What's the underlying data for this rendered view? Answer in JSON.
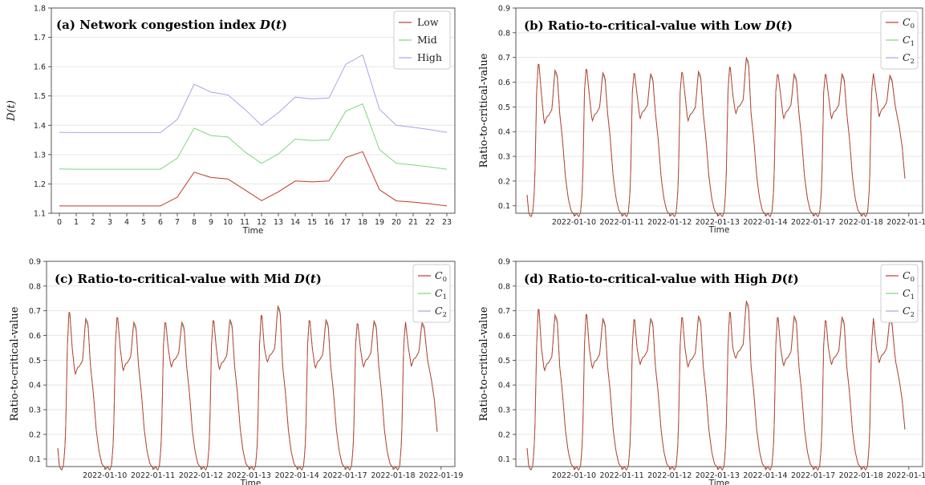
{
  "chart_data": [
    {
      "type": "line",
      "title": "(a) Network congestion index D(t)",
      "xlabel": "Time",
      "ylabel": "D(t)",
      "ylim": [
        1.1,
        1.8
      ],
      "yticks": [
        "1.1",
        "1.2",
        "1.3",
        "1.4",
        "1.5",
        "1.6",
        "1.7",
        "1.8"
      ],
      "categories": [
        "0",
        "1",
        "2",
        "3",
        "4",
        "5",
        "6",
        "7",
        "8",
        "9",
        "10",
        "11",
        "12",
        "13",
        "14",
        "15",
        "16",
        "17",
        "18",
        "19",
        "20",
        "21",
        "22",
        "23"
      ],
      "grid": "horizontal",
      "legend_position": "top-right",
      "series": [
        {
          "name": "Low",
          "color": "#c0392b",
          "values": [
            1.125,
            1.125,
            1.125,
            1.125,
            1.125,
            1.125,
            1.125,
            1.155,
            1.24,
            1.222,
            1.217,
            1.18,
            1.143,
            1.173,
            1.21,
            1.207,
            1.21,
            1.29,
            1.31,
            1.18,
            1.142,
            1.138,
            1.132,
            1.125
          ]
        },
        {
          "name": "Mid",
          "color": "#7fd67f",
          "values": [
            1.251,
            1.25,
            1.25,
            1.25,
            1.25,
            1.25,
            1.25,
            1.288,
            1.39,
            1.365,
            1.36,
            1.31,
            1.27,
            1.302,
            1.353,
            1.348,
            1.35,
            1.448,
            1.473,
            1.317,
            1.27,
            1.265,
            1.258,
            1.25
          ]
        },
        {
          "name": "High",
          "color": "#a9a3e8",
          "values": [
            1.376,
            1.375,
            1.375,
            1.375,
            1.375,
            1.375,
            1.375,
            1.42,
            1.54,
            1.513,
            1.504,
            1.455,
            1.4,
            1.443,
            1.496,
            1.49,
            1.493,
            1.608,
            1.64,
            1.455,
            1.4,
            1.393,
            1.385,
            1.376
          ]
        }
      ]
    },
    {
      "type": "line",
      "title": "(b) Ratio-to-critical-value with Low D(t)",
      "xlabel": "Time",
      "ylabel": "Ratio-to-critical-value",
      "ylim": [
        0.07,
        0.9
      ],
      "yticks": [
        "0.1",
        "0.2",
        "0.3",
        "0.4",
        "0.5",
        "0.6",
        "0.7",
        "0.8",
        "0.9"
      ],
      "xtick_labels": [
        "2022-01-10",
        "2022-01-11",
        "2022-01-12",
        "2022-01-13",
        "2022-01-14",
        "2022-01-17",
        "2022-01-18",
        "2022-01-19"
      ],
      "grid": "horizontal",
      "legend_position": "top-right",
      "series": [
        {
          "name": "C0",
          "color": "#c0392b",
          "day_peaks": [
            0.695,
            0.67,
            0.65,
            0.655,
            0.68,
            0.645,
            0.645,
            0.635
          ],
          "day_second_peaks": [
            0.65,
            0.64,
            0.635,
            0.645,
            0.7,
            0.635,
            0.635,
            0.63
          ],
          "day_dips": [
            0.43,
            0.44,
            0.45,
            0.44,
            0.47,
            0.45,
            0.45,
            0.46
          ],
          "end_value": 0.21
        },
        {
          "name": "C1",
          "color": "#7fd67f",
          "day_peaks": [
            0.695,
            0.67,
            0.65,
            0.655,
            0.68,
            0.645,
            0.645,
            0.635
          ],
          "day_second_peaks": [
            0.645,
            0.635,
            0.63,
            0.64,
            0.695,
            0.63,
            0.63,
            0.625
          ],
          "day_dips": [
            0.43,
            0.44,
            0.45,
            0.44,
            0.47,
            0.45,
            0.45,
            0.46
          ],
          "end_value": 0.21
        },
        {
          "name": "C2",
          "color": "#a9a3e8",
          "day_peaks": [
            0.695,
            0.67,
            0.65,
            0.655,
            0.68,
            0.645,
            0.645,
            0.635
          ],
          "day_second_peaks": [
            0.64,
            0.63,
            0.625,
            0.635,
            0.69,
            0.625,
            0.625,
            0.62
          ],
          "day_dips": [
            0.43,
            0.44,
            0.45,
            0.44,
            0.47,
            0.45,
            0.45,
            0.46
          ],
          "end_value": 0.21
        }
      ]
    },
    {
      "type": "line",
      "title": "(c) Ratio-to-critical-value with Mid D(t)",
      "xlabel": "Time",
      "ylabel": "Ratio-to-critical-value",
      "ylim": [
        0.07,
        0.9
      ],
      "yticks": [
        "0.1",
        "0.2",
        "0.3",
        "0.4",
        "0.5",
        "0.6",
        "0.7",
        "0.8",
        "0.9"
      ],
      "xtick_labels": [
        "2022-01-10",
        "2022-01-11",
        "2022-01-12",
        "2022-01-13",
        "2022-01-14",
        "2022-01-17",
        "2022-01-18",
        "2022-01-19"
      ],
      "grid": "horizontal",
      "legend_position": "top-right",
      "series": [
        {
          "name": "C0",
          "color": "#c0392b",
          "day_peaks": [
            0.72,
            0.695,
            0.67,
            0.68,
            0.705,
            0.68,
            0.665,
            0.655
          ],
          "day_second_peaks": [
            0.67,
            0.655,
            0.655,
            0.665,
            0.72,
            0.665,
            0.66,
            0.655
          ],
          "day_dips": [
            0.44,
            0.455,
            0.47,
            0.46,
            0.49,
            0.465,
            0.47,
            0.475
          ],
          "end_value": 0.21
        },
        {
          "name": "C1",
          "color": "#7fd67f",
          "day_peaks": [
            0.72,
            0.695,
            0.67,
            0.68,
            0.705,
            0.68,
            0.665,
            0.655
          ],
          "day_second_peaks": [
            0.665,
            0.65,
            0.65,
            0.66,
            0.715,
            0.66,
            0.655,
            0.65
          ],
          "day_dips": [
            0.44,
            0.455,
            0.47,
            0.46,
            0.49,
            0.465,
            0.47,
            0.475
          ],
          "end_value": 0.21
        },
        {
          "name": "C2",
          "color": "#a9a3e8",
          "day_peaks": [
            0.72,
            0.695,
            0.67,
            0.68,
            0.705,
            0.68,
            0.665,
            0.655
          ],
          "day_second_peaks": [
            0.66,
            0.645,
            0.645,
            0.655,
            0.71,
            0.655,
            0.65,
            0.645
          ],
          "day_dips": [
            0.44,
            0.455,
            0.47,
            0.46,
            0.49,
            0.465,
            0.47,
            0.475
          ],
          "end_value": 0.21
        }
      ]
    },
    {
      "type": "line",
      "title": "(d) Ratio-to-critical-value with High D(t)",
      "xlabel": "Time",
      "ylabel": "Ratio-to-critical-value",
      "ylim": [
        0.07,
        0.9
      ],
      "yticks": [
        "0.1",
        "0.2",
        "0.3",
        "0.4",
        "0.5",
        "0.6",
        "0.7",
        "0.8",
        "0.9"
      ],
      "xtick_labels": [
        "2022-01-10",
        "2022-01-11",
        "2022-01-12",
        "2022-01-13",
        "2022-01-14",
        "2022-01-17",
        "2022-01-18",
        "2022-01-19"
      ],
      "grid": "horizontal",
      "legend_position": "top-right",
      "series": [
        {
          "name": "C0",
          "color": "#c0392b",
          "day_peaks": [
            0.735,
            0.71,
            0.685,
            0.695,
            0.72,
            0.695,
            0.68,
            0.67
          ],
          "day_second_peaks": [
            0.685,
            0.67,
            0.67,
            0.68,
            0.74,
            0.68,
            0.675,
            0.67
          ],
          "day_dips": [
            0.455,
            0.465,
            0.48,
            0.47,
            0.505,
            0.475,
            0.48,
            0.49
          ],
          "end_value": 0.22
        },
        {
          "name": "C1",
          "color": "#7fd67f",
          "day_peaks": [
            0.735,
            0.71,
            0.685,
            0.695,
            0.72,
            0.695,
            0.68,
            0.67
          ],
          "day_second_peaks": [
            0.68,
            0.665,
            0.665,
            0.675,
            0.735,
            0.675,
            0.67,
            0.665
          ],
          "day_dips": [
            0.455,
            0.465,
            0.48,
            0.47,
            0.505,
            0.475,
            0.48,
            0.49
          ],
          "end_value": 0.22
        },
        {
          "name": "C2",
          "color": "#a9a3e8",
          "day_peaks": [
            0.735,
            0.71,
            0.685,
            0.695,
            0.72,
            0.695,
            0.68,
            0.67
          ],
          "day_second_peaks": [
            0.675,
            0.66,
            0.66,
            0.67,
            0.73,
            0.67,
            0.665,
            0.66
          ],
          "day_dips": [
            0.455,
            0.465,
            0.48,
            0.47,
            0.505,
            0.475,
            0.48,
            0.49
          ],
          "end_value": 0.22
        }
      ]
    }
  ]
}
